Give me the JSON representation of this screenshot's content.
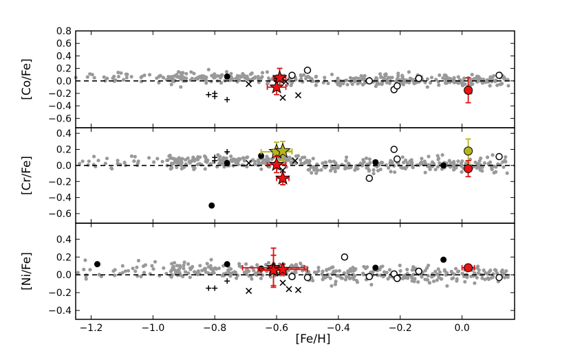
{
  "chart_data": {
    "type": "scatter",
    "xlabel": "[Fe/H]",
    "xlim": [
      -1.25,
      0.17
    ],
    "xticks": [
      "−1.2",
      "−1.0",
      "−0.8",
      "−0.6",
      "−0.4",
      "−0.2",
      "0.0"
    ],
    "xtick_values": [
      -1.2,
      -1.0,
      -0.8,
      -0.6,
      -0.4,
      -0.2,
      0.0
    ],
    "reference_line": 0,
    "panels": [
      {
        "ylabel": "[Co/Fe]",
        "ylim": [
          -0.75,
          0.8
        ],
        "yticks": [
          "0.8",
          "0.6",
          "0.4",
          "0.2",
          "0.0",
          "−0.2",
          "−0.4",
          "−0.6"
        ],
        "ytick_values": [
          0.8,
          0.6,
          0.4,
          0.2,
          0.0,
          -0.2,
          -0.4,
          -0.6
        ],
        "filled_circles": [
          [
            -0.76,
            0.07
          ],
          [
            -0.6,
            0.02
          ]
        ],
        "open_circles": [
          [
            -0.55,
            0.09
          ],
          [
            -0.5,
            0.17
          ],
          [
            -0.3,
            0.0
          ],
          [
            -0.22,
            -0.14
          ],
          [
            -0.21,
            -0.08
          ],
          [
            -0.14,
            0.04
          ],
          [
            0.12,
            0.09
          ]
        ],
        "crosses": [
          [
            -0.69,
            -0.05
          ],
          [
            -0.58,
            -0.27
          ],
          [
            -0.57,
            -0.01
          ],
          [
            -0.53,
            -0.23
          ]
        ],
        "pluses": [
          [
            -0.82,
            -0.22
          ],
          [
            -0.8,
            -0.2
          ],
          [
            -0.8,
            -0.25
          ],
          [
            -0.76,
            -0.3
          ]
        ],
        "red_circles": [
          {
            "x": 0.02,
            "y": -0.15,
            "xerr": 0.01,
            "yerr": 0.2
          }
        ],
        "red_stars": [
          {
            "x": -0.6,
            "y": -0.1,
            "xerr": 0.03,
            "yerr": 0.12
          },
          {
            "x": -0.59,
            "y": 0.05,
            "xerr": 0.02,
            "yerr": 0.15
          }
        ],
        "yellow_stars": []
      },
      {
        "ylabel": "[Cr/Fe]",
        "ylim": [
          -0.72,
          0.47
        ],
        "yticks": [
          "0.4",
          "0.2",
          "0.0",
          "−0.2",
          "−0.4",
          "−0.6"
        ],
        "ytick_values": [
          0.4,
          0.2,
          0.0,
          -0.2,
          -0.4,
          -0.6
        ],
        "filled_circles": [
          [
            -0.81,
            -0.5
          ],
          [
            -0.76,
            0.03
          ],
          [
            -0.65,
            0.12
          ],
          [
            -0.28,
            0.04
          ],
          [
            -0.06,
            0.0
          ]
        ],
        "open_circles": [
          [
            -0.3,
            -0.16
          ],
          [
            -0.22,
            0.2
          ],
          [
            -0.21,
            0.08
          ],
          [
            0.12,
            0.11
          ]
        ],
        "crosses": [
          [
            -0.69,
            0.03
          ],
          [
            -0.58,
            -0.06
          ],
          [
            -0.54,
            0.06
          ]
        ],
        "pluses": [
          [
            -0.8,
            0.1
          ],
          [
            -0.8,
            0.06
          ],
          [
            -0.76,
            0.17
          ]
        ],
        "red_circles": [
          {
            "x": 0.02,
            "y": -0.04,
            "xerr": 0.01,
            "yerr": 0.1
          }
        ],
        "red_stars": [
          {
            "x": -0.6,
            "y": 0.01,
            "xerr": 0.03,
            "yerr": 0.1
          },
          {
            "x": -0.58,
            "y": -0.16,
            "xerr": 0.02,
            "yerr": 0.08
          }
        ],
        "yellow_stars": [
          {
            "x": -0.6,
            "y": 0.17,
            "xerr": 0.05,
            "yerr": 0.12
          },
          {
            "x": -0.58,
            "y": 0.18,
            "xerr": 0.03,
            "yerr": 0.12
          }
        ],
        "yellow_circles": [
          {
            "x": 0.02,
            "y": 0.18,
            "xerr": 0.01,
            "yerr": 0.15
          }
        ]
      },
      {
        "ylabel": "[Ni/Fe]",
        "ylim": [
          -0.5,
          0.58
        ],
        "yticks": [
          "0.4",
          "0.2",
          "0.0",
          "−0.2",
          "−0.4"
        ],
        "ytick_values": [
          0.4,
          0.2,
          0.0,
          -0.2,
          -0.4
        ],
        "filled_circles": [
          [
            -1.18,
            0.12
          ],
          [
            -0.76,
            0.12
          ],
          [
            -0.65,
            0.07
          ],
          [
            -0.28,
            0.08
          ],
          [
            -0.06,
            0.17
          ]
        ],
        "open_circles": [
          [
            -0.55,
            -0.02
          ],
          [
            -0.5,
            -0.03
          ],
          [
            -0.38,
            0.2
          ],
          [
            -0.3,
            -0.02
          ],
          [
            -0.22,
            0.01
          ],
          [
            -0.21,
            -0.04
          ],
          [
            -0.14,
            0.04
          ],
          [
            0.12,
            -0.03
          ]
        ],
        "crosses": [
          [
            -0.69,
            -0.18
          ],
          [
            -0.58,
            -0.09
          ],
          [
            -0.56,
            -0.16
          ],
          [
            -0.53,
            -0.17
          ]
        ],
        "pluses": [
          [
            -0.82,
            -0.15
          ],
          [
            -0.8,
            -0.15
          ],
          [
            -0.76,
            -0.07
          ]
        ],
        "red_circles": [
          {
            "x": 0.02,
            "y": 0.08,
            "xerr": 0.02,
            "yerr": 0.03
          }
        ],
        "red_stars": [
          {
            "x": -0.61,
            "y": 0.08,
            "xerr": 0.1,
            "yerr": 0.22
          },
          {
            "x": -0.61,
            "y": 0.05,
            "xerr": 0.04,
            "yerr": 0.17
          },
          {
            "x": -0.58,
            "y": 0.06,
            "xerr": 0.08,
            "yerr": 0.06
          }
        ],
        "yellow_stars": []
      }
    ]
  }
}
